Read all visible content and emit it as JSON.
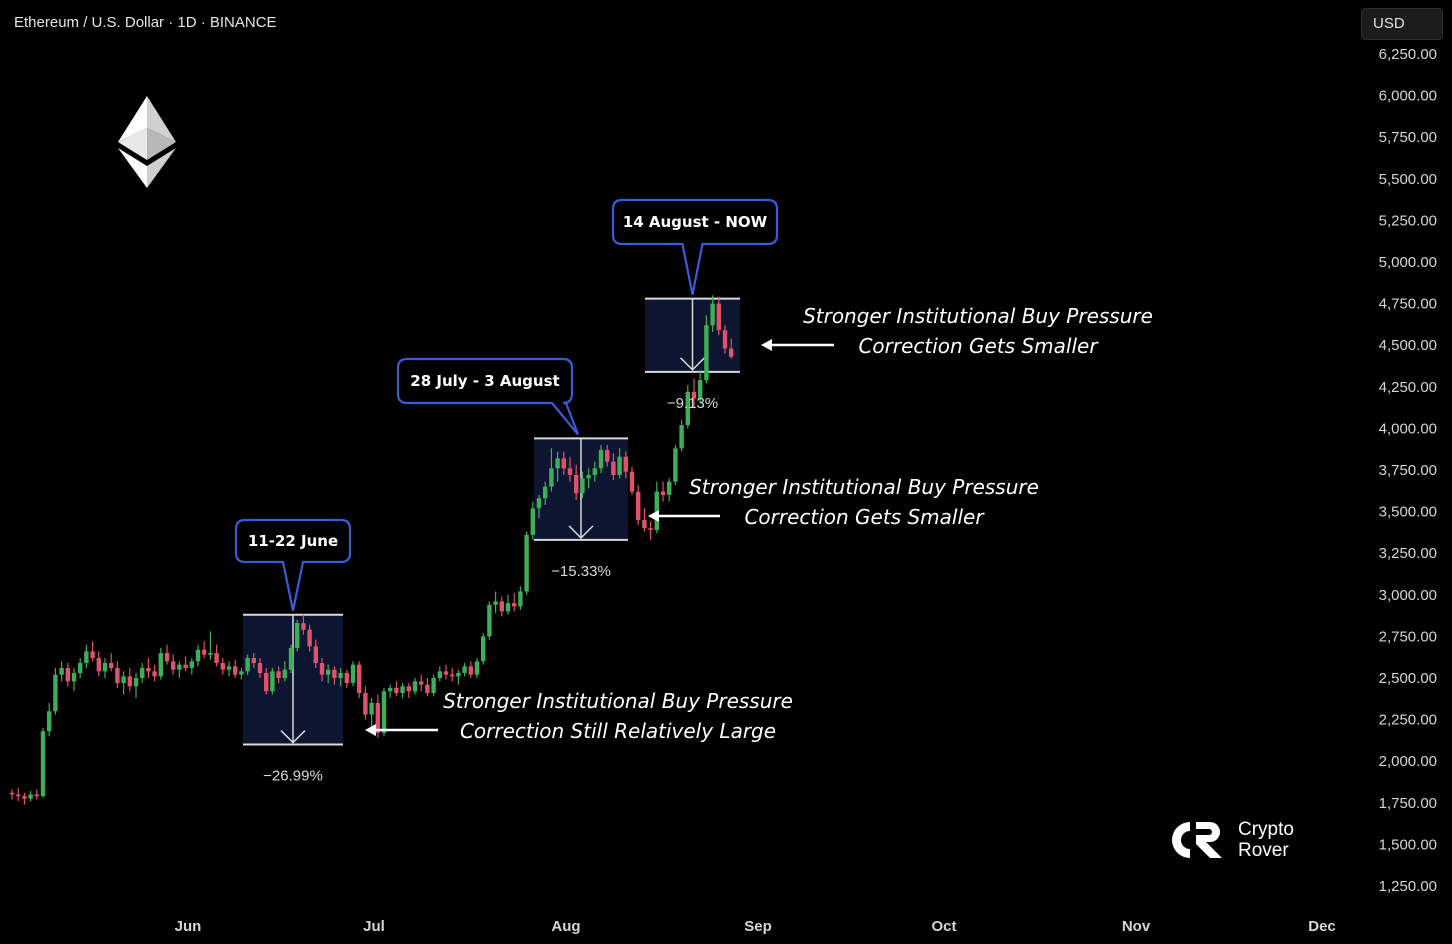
{
  "header": {
    "title": "Ethereum / U.S. Dollar · 1D · BINANCE",
    "currency": "USD"
  },
  "brand": {
    "line1": "Crypto",
    "line2": "Rover",
    "logo_icon": "crypto-rover-logo-icon"
  },
  "colors": {
    "up": "#3fae58",
    "down": "#e0526b",
    "callout": "#3b5bdb",
    "box": "#0e1530",
    "box_line": "#d9d9d9"
  },
  "chart_data": {
    "type": "candlestick",
    "title": "Ethereum / U.S. Dollar · 1D · BINANCE",
    "y_ticks": [
      "6,250.00",
      "6,000.00",
      "5,750.00",
      "5,500.00",
      "5,250.00",
      "5,000.00",
      "4,750.00",
      "4,500.00",
      "4,250.00",
      "4,000.00",
      "3,750.00",
      "3,500.00",
      "3,250.00",
      "3,000.00",
      "2,750.00",
      "2,500.00",
      "2,250.00",
      "2,000.00",
      "1,750.00",
      "1,500.00",
      "1,250.00"
    ],
    "x_ticks": [
      "Jun",
      "Jul",
      "Aug",
      "Sep",
      "Oct",
      "Nov",
      "Dec"
    ],
    "ylim": [
      1150,
      6330
    ],
    "grid": false,
    "candles": [
      [
        1810,
        1830,
        1770,
        1800
      ],
      [
        1800,
        1840,
        1760,
        1790
      ],
      [
        1790,
        1810,
        1740,
        1775
      ],
      [
        1775,
        1820,
        1760,
        1800
      ],
      [
        1800,
        1830,
        1770,
        1790
      ],
      [
        1790,
        2200,
        1780,
        2180
      ],
      [
        2180,
        2350,
        2150,
        2300
      ],
      [
        2300,
        2560,
        2280,
        2520
      ],
      [
        2520,
        2600,
        2480,
        2560
      ],
      [
        2560,
        2590,
        2450,
        2480
      ],
      [
        2480,
        2560,
        2420,
        2530
      ],
      [
        2530,
        2620,
        2500,
        2590
      ],
      [
        2590,
        2700,
        2560,
        2660
      ],
      [
        2660,
        2720,
        2600,
        2620
      ],
      [
        2620,
        2660,
        2510,
        2540
      ],
      [
        2540,
        2620,
        2500,
        2590
      ],
      [
        2590,
        2650,
        2540,
        2560
      ],
      [
        2560,
        2600,
        2440,
        2470
      ],
      [
        2470,
        2540,
        2400,
        2510
      ],
      [
        2510,
        2560,
        2420,
        2450
      ],
      [
        2450,
        2530,
        2380,
        2500
      ],
      [
        2500,
        2590,
        2470,
        2560
      ],
      [
        2560,
        2620,
        2500,
        2540
      ],
      [
        2540,
        2580,
        2480,
        2510
      ],
      [
        2510,
        2680,
        2490,
        2650
      ],
      [
        2650,
        2700,
        2580,
        2600
      ],
      [
        2600,
        2640,
        2520,
        2550
      ],
      [
        2550,
        2600,
        2500,
        2580
      ],
      [
        2580,
        2630,
        2540,
        2560
      ],
      [
        2560,
        2620,
        2520,
        2600
      ],
      [
        2600,
        2700,
        2570,
        2670
      ],
      [
        2670,
        2720,
        2620,
        2640
      ],
      [
        2640,
        2780,
        2610,
        2650
      ],
      [
        2650,
        2700,
        2570,
        2590
      ],
      [
        2590,
        2620,
        2520,
        2550
      ],
      [
        2550,
        2600,
        2510,
        2570
      ],
      [
        2570,
        2610,
        2500,
        2520
      ],
      [
        2520,
        2560,
        2490,
        2540
      ],
      [
        2540,
        2640,
        2520,
        2620
      ],
      [
        2620,
        2650,
        2560,
        2590
      ],
      [
        2590,
        2620,
        2500,
        2530
      ],
      [
        2530,
        2560,
        2400,
        2420
      ],
      [
        2420,
        2560,
        2400,
        2540
      ],
      [
        2540,
        2570,
        2470,
        2500
      ],
      [
        2500,
        2600,
        2480,
        2550
      ],
      [
        2550,
        2700,
        2530,
        2680
      ],
      [
        2680,
        2850,
        2660,
        2830
      ],
      [
        2830,
        2880,
        2760,
        2790
      ],
      [
        2790,
        2820,
        2660,
        2690
      ],
      [
        2690,
        2730,
        2560,
        2590
      ],
      [
        2590,
        2620,
        2480,
        2520
      ],
      [
        2520,
        2580,
        2470,
        2550
      ],
      [
        2550,
        2570,
        2460,
        2500
      ],
      [
        2500,
        2560,
        2450,
        2530
      ],
      [
        2530,
        2550,
        2440,
        2470
      ],
      [
        2470,
        2600,
        2450,
        2580
      ],
      [
        2580,
        2600,
        2380,
        2410
      ],
      [
        2410,
        2450,
        2250,
        2280
      ],
      [
        2280,
        2380,
        2200,
        2350
      ],
      [
        2350,
        2400,
        2140,
        2170
      ],
      [
        2170,
        2440,
        2150,
        2420
      ],
      [
        2420,
        2460,
        2380,
        2440
      ],
      [
        2440,
        2480,
        2390,
        2410
      ],
      [
        2410,
        2470,
        2380,
        2450
      ],
      [
        2450,
        2470,
        2380,
        2420
      ],
      [
        2420,
        2500,
        2400,
        2480
      ],
      [
        2480,
        2520,
        2420,
        2460
      ],
      [
        2460,
        2500,
        2390,
        2410
      ],
      [
        2410,
        2520,
        2390,
        2500
      ],
      [
        2500,
        2570,
        2480,
        2540
      ],
      [
        2540,
        2580,
        2490,
        2520
      ],
      [
        2520,
        2560,
        2480,
        2510
      ],
      [
        2510,
        2550,
        2460,
        2530
      ],
      [
        2530,
        2590,
        2510,
        2570
      ],
      [
        2570,
        2600,
        2500,
        2520
      ],
      [
        2520,
        2620,
        2500,
        2600
      ],
      [
        2600,
        2770,
        2580,
        2750
      ],
      [
        2750,
        2960,
        2730,
        2940
      ],
      [
        2940,
        3020,
        2890,
        2960
      ],
      [
        2960,
        2990,
        2870,
        2900
      ],
      [
        2900,
        3000,
        2880,
        2950
      ],
      [
        2950,
        3010,
        2900,
        2930
      ],
      [
        2930,
        3050,
        2910,
        3020
      ],
      [
        3020,
        3380,
        3000,
        3360
      ],
      [
        3360,
        3560,
        3330,
        3520
      ],
      [
        3520,
        3600,
        3460,
        3580
      ],
      [
        3580,
        3680,
        3540,
        3650
      ],
      [
        3650,
        3880,
        3620,
        3760
      ],
      [
        3760,
        3860,
        3680,
        3820
      ],
      [
        3820,
        3860,
        3720,
        3760
      ],
      [
        3760,
        3830,
        3680,
        3720
      ],
      [
        3720,
        3780,
        3570,
        3610
      ],
      [
        3610,
        3740,
        3580,
        3700
      ],
      [
        3700,
        3760,
        3640,
        3720
      ],
      [
        3720,
        3800,
        3680,
        3760
      ],
      [
        3760,
        3900,
        3730,
        3870
      ],
      [
        3870,
        3900,
        3770,
        3800
      ],
      [
        3800,
        3850,
        3690,
        3720
      ],
      [
        3720,
        3880,
        3700,
        3830
      ],
      [
        3830,
        3860,
        3700,
        3740
      ],
      [
        3740,
        3770,
        3600,
        3620
      ],
      [
        3620,
        3660,
        3420,
        3450
      ],
      [
        3450,
        3520,
        3380,
        3400
      ],
      [
        3400,
        3440,
        3330,
        3390
      ],
      [
        3390,
        3680,
        3370,
        3620
      ],
      [
        3620,
        3680,
        3560,
        3600
      ],
      [
        3600,
        3700,
        3560,
        3680
      ],
      [
        3680,
        3900,
        3660,
        3880
      ],
      [
        3880,
        4050,
        3860,
        4020
      ],
      [
        4020,
        4260,
        4000,
        4220
      ],
      [
        4220,
        4300,
        4120,
        4180
      ],
      [
        4180,
        4350,
        4160,
        4290
      ],
      [
        4290,
        4680,
        4270,
        4620
      ],
      [
        4620,
        4800,
        4580,
        4750
      ],
      [
        4750,
        4790,
        4560,
        4590
      ],
      [
        4590,
        4620,
        4450,
        4480
      ],
      [
        4480,
        4540,
        4420,
        4430
      ]
    ],
    "annotations": [
      {
        "label": "11-22 June",
        "pct": "−26.99%",
        "high": 2880,
        "low": 2100
      },
      {
        "label": "28 July - 3 August",
        "pct": "−15.33%",
        "high": 3940,
        "low": 3330
      },
      {
        "label": "14 August - NOW",
        "pct": "−9.13%",
        "high": 4780,
        "low": 4340
      }
    ],
    "notes": [
      {
        "line1": "Stronger Institutional Buy Pressure",
        "line2": "Correction Still Relatively Large"
      },
      {
        "line1": "Stronger Institutional Buy Pressure",
        "line2": "Correction Gets Smaller"
      },
      {
        "line1": "Stronger Institutional Buy Pressure",
        "line2": "Correction Gets Smaller"
      }
    ]
  }
}
